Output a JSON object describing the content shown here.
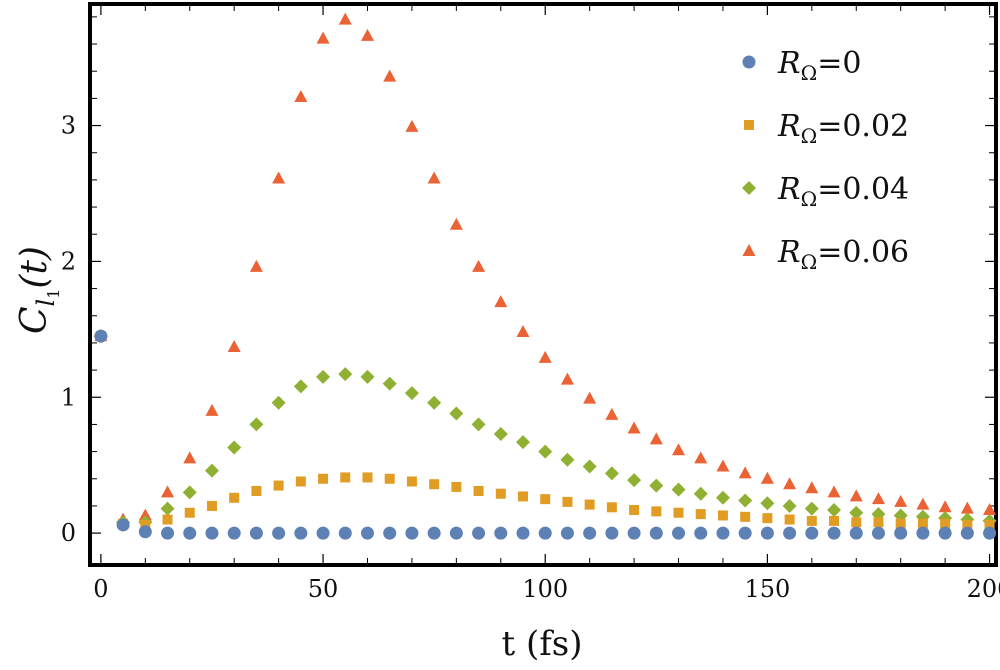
{
  "chart_data": {
    "type": "scatter",
    "title": "",
    "xlabel": "t (fs)",
    "ylabel": "C_{l_1}(t)",
    "ylabel_parts": {
      "main": "C",
      "sub": "l",
      "subsub": "1",
      "arg": "(t)"
    },
    "xlim": [
      -2,
      201
    ],
    "ylim": [
      -0.22,
      3.88
    ],
    "xticks": [
      0,
      50,
      100,
      150,
      200
    ],
    "xtick_labels": [
      "0",
      "50",
      "100",
      "150",
      "200"
    ],
    "yticks": [
      0,
      1,
      2,
      3
    ],
    "ytick_labels": [
      "0",
      "1",
      "2",
      "3"
    ],
    "legend_position": "top-right",
    "x": [
      0,
      5,
      10,
      15,
      20,
      25,
      30,
      35,
      40,
      45,
      50,
      55,
      60,
      65,
      70,
      75,
      80,
      85,
      90,
      95,
      100,
      105,
      110,
      115,
      120,
      125,
      130,
      135,
      140,
      145,
      150,
      155,
      160,
      165,
      170,
      175,
      180,
      185,
      190,
      195,
      200
    ],
    "series": [
      {
        "name": "R_Ω=0",
        "label_main": "R",
        "label_sub": "Ω",
        "label_value": "=0",
        "color": "#5E81B5",
        "marker": "circle",
        "values": [
          1.45,
          0.06,
          0.01,
          0,
          0,
          0,
          0,
          0,
          0,
          0,
          0,
          0,
          0,
          0,
          0,
          0,
          0,
          0,
          0,
          0,
          0,
          0,
          0,
          0,
          0,
          0,
          0,
          0,
          0,
          0,
          0,
          0,
          0,
          0,
          0,
          0,
          0,
          0,
          0,
          0,
          0
        ]
      },
      {
        "name": "R_Ω=0.02",
        "label_main": "R",
        "label_sub": "Ω",
        "label_value": "=0.02",
        "color": "#E19C24",
        "marker": "square",
        "values": [
          1.45,
          0.07,
          0.06,
          0.1,
          0.15,
          0.2,
          0.26,
          0.31,
          0.35,
          0.38,
          0.4,
          0.41,
          0.41,
          0.4,
          0.38,
          0.36,
          0.34,
          0.31,
          0.29,
          0.27,
          0.25,
          0.23,
          0.21,
          0.19,
          0.17,
          0.16,
          0.15,
          0.14,
          0.13,
          0.12,
          0.11,
          0.1,
          0.09,
          0.09,
          0.08,
          0.08,
          0.07,
          0.07,
          0.07,
          0.06,
          0.06
        ]
      },
      {
        "name": "R_Ω=0.04",
        "label_main": "R",
        "label_sub": "Ω",
        "label_value": "=0.04",
        "color": "#8FB032",
        "marker": "diamond",
        "values": [
          1.45,
          0.08,
          0.08,
          0.18,
          0.3,
          0.46,
          0.63,
          0.8,
          0.96,
          1.08,
          1.15,
          1.17,
          1.15,
          1.1,
          1.03,
          0.96,
          0.88,
          0.8,
          0.73,
          0.67,
          0.6,
          0.54,
          0.49,
          0.44,
          0.39,
          0.35,
          0.32,
          0.29,
          0.26,
          0.24,
          0.22,
          0.2,
          0.18,
          0.17,
          0.15,
          0.14,
          0.13,
          0.12,
          0.11,
          0.1,
          0.09
        ]
      },
      {
        "name": "R_Ω=0.06",
        "label_main": "R",
        "label_sub": "Ω",
        "label_value": "=0.06",
        "color": "#EB6235",
        "marker": "triangle",
        "values": [
          1.45,
          0.1,
          0.13,
          0.3,
          0.55,
          0.9,
          1.37,
          1.96,
          2.61,
          3.21,
          3.64,
          3.78,
          3.66,
          3.36,
          2.99,
          2.61,
          2.27,
          1.96,
          1.7,
          1.48,
          1.29,
          1.13,
          0.99,
          0.87,
          0.77,
          0.69,
          0.61,
          0.55,
          0.49,
          0.44,
          0.4,
          0.36,
          0.33,
          0.3,
          0.27,
          0.25,
          0.23,
          0.21,
          0.19,
          0.18,
          0.17
        ]
      }
    ]
  }
}
